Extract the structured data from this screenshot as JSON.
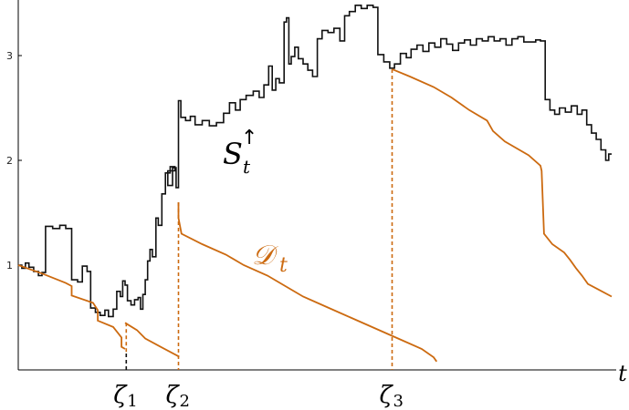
{
  "chart_data": {
    "type": "line",
    "title": "",
    "xlabel": "t",
    "ylabel": "",
    "ylim": [
      0,
      3.5
    ],
    "xlim": [
      0,
      1
    ],
    "grid": false,
    "yticks": [
      "1",
      "2",
      "3"
    ],
    "colors": {
      "S": "#111111",
      "D": "#cc6a10",
      "dashes_D": "#cc6a10",
      "dash_first": "#111111"
    },
    "series": [
      {
        "name": "S_t^↑",
        "label_main": "S",
        "label_sub": "t",
        "label_sup": "↑",
        "points": [
          [
            0.0,
            1.0
          ],
          [
            0.006,
            1.0
          ],
          [
            0.006,
            0.97
          ],
          [
            0.012,
            0.97
          ],
          [
            0.012,
            1.02
          ],
          [
            0.018,
            1.02
          ],
          [
            0.018,
            0.98
          ],
          [
            0.026,
            0.98
          ],
          [
            0.026,
            0.94
          ],
          [
            0.034,
            0.94
          ],
          [
            0.034,
            0.9
          ],
          [
            0.04,
            0.9
          ],
          [
            0.04,
            0.93
          ],
          [
            0.046,
            0.93
          ],
          [
            0.046,
            1.37
          ],
          [
            0.058,
            1.37
          ],
          [
            0.058,
            1.35
          ],
          [
            0.07,
            1.35
          ],
          [
            0.07,
            1.38
          ],
          [
            0.08,
            1.38
          ],
          [
            0.08,
            1.35
          ],
          [
            0.09,
            1.35
          ],
          [
            0.09,
            0.86
          ],
          [
            0.1,
            0.86
          ],
          [
            0.1,
            0.84
          ],
          [
            0.108,
            0.84
          ],
          [
            0.108,
            0.99
          ],
          [
            0.116,
            0.99
          ],
          [
            0.116,
            0.94
          ],
          [
            0.122,
            0.94
          ],
          [
            0.122,
            0.59
          ],
          [
            0.13,
            0.59
          ],
          [
            0.13,
            0.55
          ],
          [
            0.138,
            0.55
          ],
          [
            0.138,
            0.52
          ],
          [
            0.146,
            0.52
          ],
          [
            0.146,
            0.57
          ],
          [
            0.152,
            0.57
          ],
          [
            0.152,
            0.51
          ],
          [
            0.16,
            0.51
          ],
          [
            0.16,
            0.58
          ],
          [
            0.166,
            0.58
          ],
          [
            0.166,
            0.75
          ],
          [
            0.172,
            0.75
          ],
          [
            0.172,
            0.7
          ],
          [
            0.176,
            0.7
          ],
          [
            0.176,
            0.85
          ],
          [
            0.18,
            0.85
          ],
          [
            0.18,
            0.81
          ],
          [
            0.184,
            0.81
          ],
          [
            0.184,
            0.66
          ],
          [
            0.19,
            0.66
          ],
          [
            0.19,
            0.62
          ],
          [
            0.196,
            0.62
          ],
          [
            0.196,
            0.67
          ],
          [
            0.202,
            0.67
          ],
          [
            0.202,
            0.69
          ],
          [
            0.206,
            0.69
          ],
          [
            0.206,
            0.58
          ],
          [
            0.21,
            0.58
          ],
          [
            0.21,
            0.72
          ],
          [
            0.214,
            0.72
          ],
          [
            0.214,
            0.86
          ],
          [
            0.218,
            0.86
          ],
          [
            0.218,
            1.04
          ],
          [
            0.222,
            1.04
          ],
          [
            0.222,
            1.15
          ],
          [
            0.226,
            1.15
          ],
          [
            0.226,
            1.08
          ],
          [
            0.232,
            1.08
          ],
          [
            0.232,
            1.45
          ],
          [
            0.236,
            1.45
          ],
          [
            0.236,
            1.38
          ],
          [
            0.242,
            1.38
          ],
          [
            0.242,
            1.68
          ],
          [
            0.248,
            1.68
          ],
          [
            0.248,
            1.88
          ],
          [
            0.256,
            1.88
          ],
          [
            0.256,
            1.94
          ],
          [
            0.264,
            1.94
          ],
          [
            0.264,
            1.9
          ],
          [
            0.252,
            1.9
          ],
          [
            0.252,
            1.76
          ],
          [
            0.26,
            1.76
          ],
          [
            0.26,
            1.93
          ],
          [
            0.266,
            1.93
          ],
          [
            0.266,
            1.74
          ],
          [
            0.27,
            1.74
          ],
          [
            0.27,
            2.57
          ],
          [
            0.274,
            2.57
          ],
          [
            0.274,
            2.41
          ],
          [
            0.282,
            2.41
          ],
          [
            0.282,
            2.38
          ],
          [
            0.29,
            2.38
          ],
          [
            0.29,
            2.42
          ],
          [
            0.298,
            2.42
          ],
          [
            0.298,
            2.34
          ],
          [
            0.31,
            2.34
          ],
          [
            0.31,
            2.38
          ],
          [
            0.322,
            2.38
          ],
          [
            0.322,
            2.33
          ],
          [
            0.334,
            2.33
          ],
          [
            0.334,
            2.36
          ],
          [
            0.346,
            2.36
          ],
          [
            0.346,
            2.45
          ],
          [
            0.356,
            2.45
          ],
          [
            0.356,
            2.55
          ],
          [
            0.366,
            2.55
          ],
          [
            0.366,
            2.48
          ],
          [
            0.374,
            2.48
          ],
          [
            0.374,
            2.58
          ],
          [
            0.384,
            2.58
          ],
          [
            0.384,
            2.62
          ],
          [
            0.396,
            2.62
          ],
          [
            0.396,
            2.66
          ],
          [
            0.406,
            2.66
          ],
          [
            0.406,
            2.6
          ],
          [
            0.414,
            2.6
          ],
          [
            0.414,
            2.72
          ],
          [
            0.422,
            2.72
          ],
          [
            0.422,
            2.9
          ],
          [
            0.428,
            2.9
          ],
          [
            0.428,
            2.67
          ],
          [
            0.434,
            2.67
          ],
          [
            0.434,
            2.78
          ],
          [
            0.44,
            2.78
          ],
          [
            0.44,
            2.74
          ],
          [
            0.448,
            2.74
          ],
          [
            0.448,
            3.32
          ],
          [
            0.452,
            3.32
          ],
          [
            0.452,
            3.36
          ],
          [
            0.456,
            3.36
          ],
          [
            0.456,
            2.92
          ],
          [
            0.46,
            2.92
          ],
          [
            0.46,
            2.99
          ],
          [
            0.466,
            2.99
          ],
          [
            0.466,
            3.08
          ],
          [
            0.472,
            3.08
          ],
          [
            0.472,
            2.97
          ],
          [
            0.48,
            2.97
          ],
          [
            0.48,
            2.92
          ],
          [
            0.488,
            2.92
          ],
          [
            0.488,
            2.86
          ],
          [
            0.496,
            2.86
          ],
          [
            0.496,
            2.8
          ],
          [
            0.504,
            2.8
          ],
          [
            0.504,
            3.16
          ],
          [
            0.512,
            3.16
          ],
          [
            0.512,
            3.24
          ],
          [
            0.522,
            3.24
          ],
          [
            0.522,
            3.22
          ],
          [
            0.532,
            3.22
          ],
          [
            0.532,
            3.26
          ],
          [
            0.542,
            3.26
          ],
          [
            0.542,
            3.14
          ],
          [
            0.55,
            3.14
          ],
          [
            0.55,
            3.38
          ],
          [
            0.558,
            3.38
          ],
          [
            0.558,
            3.42
          ],
          [
            0.568,
            3.42
          ],
          [
            0.568,
            3.48
          ],
          [
            0.578,
            3.48
          ],
          [
            0.578,
            3.45
          ],
          [
            0.588,
            3.45
          ],
          [
            0.588,
            3.48
          ],
          [
            0.598,
            3.48
          ],
          [
            0.598,
            3.46
          ],
          [
            0.606,
            3.46
          ],
          [
            0.606,
            3.01
          ],
          [
            0.616,
            3.01
          ],
          [
            0.616,
            2.94
          ],
          [
            0.626,
            2.94
          ],
          [
            0.626,
            2.88
          ],
          [
            0.634,
            2.88
          ],
          [
            0.634,
            2.92
          ],
          [
            0.644,
            2.92
          ],
          [
            0.644,
            3.02
          ],
          [
            0.654,
            3.02
          ],
          [
            0.654,
            2.98
          ],
          [
            0.662,
            2.98
          ],
          [
            0.662,
            3.06
          ],
          [
            0.672,
            3.06
          ],
          [
            0.672,
            3.1
          ],
          [
            0.682,
            3.1
          ],
          [
            0.682,
            3.04
          ],
          [
            0.692,
            3.04
          ],
          [
            0.692,
            3.12
          ],
          [
            0.702,
            3.12
          ],
          [
            0.702,
            3.08
          ],
          [
            0.712,
            3.08
          ],
          [
            0.712,
            3.16
          ],
          [
            0.722,
            3.16
          ],
          [
            0.722,
            3.11
          ],
          [
            0.732,
            3.11
          ],
          [
            0.732,
            3.05
          ],
          [
            0.742,
            3.05
          ],
          [
            0.742,
            3.12
          ],
          [
            0.752,
            3.12
          ],
          [
            0.752,
            3.15
          ],
          [
            0.762,
            3.15
          ],
          [
            0.762,
            3.1
          ],
          [
            0.772,
            3.1
          ],
          [
            0.772,
            3.16
          ],
          [
            0.782,
            3.16
          ],
          [
            0.782,
            3.14
          ],
          [
            0.792,
            3.14
          ],
          [
            0.792,
            3.18
          ],
          [
            0.802,
            3.18
          ],
          [
            0.802,
            3.14
          ],
          [
            0.812,
            3.14
          ],
          [
            0.812,
            3.16
          ],
          [
            0.822,
            3.16
          ],
          [
            0.822,
            3.1
          ],
          [
            0.832,
            3.1
          ],
          [
            0.832,
            3.16
          ],
          [
            0.842,
            3.16
          ],
          [
            0.842,
            3.18
          ],
          [
            0.852,
            3.18
          ],
          [
            0.852,
            3.13
          ],
          [
            0.872,
            3.13
          ],
          [
            0.872,
            3.15
          ],
          [
            0.88,
            3.15
          ],
          [
            0.88,
            3.14
          ],
          [
            0.888,
            3.14
          ],
          [
            0.888,
            2.58
          ],
          [
            0.896,
            2.58
          ],
          [
            0.896,
            2.48
          ],
          [
            0.904,
            2.48
          ],
          [
            0.904,
            2.44
          ],
          [
            0.912,
            2.44
          ],
          [
            0.912,
            2.5
          ],
          [
            0.922,
            2.5
          ],
          [
            0.922,
            2.46
          ],
          [
            0.932,
            2.46
          ],
          [
            0.932,
            2.52
          ],
          [
            0.942,
            2.52
          ],
          [
            0.942,
            2.44
          ],
          [
            0.95,
            2.44
          ],
          [
            0.95,
            2.48
          ],
          [
            0.958,
            2.48
          ],
          [
            0.958,
            2.34
          ],
          [
            0.966,
            2.34
          ],
          [
            0.966,
            2.26
          ],
          [
            0.974,
            2.26
          ],
          [
            0.974,
            2.2
          ],
          [
            0.982,
            2.2
          ],
          [
            0.982,
            2.1
          ],
          [
            0.99,
            2.1
          ],
          [
            0.99,
            2.0
          ],
          [
            0.995,
            2.0
          ],
          [
            0.995,
            2.06
          ],
          [
            1.0,
            2.06
          ]
        ]
      },
      {
        "name": "𝒟_t",
        "label_main": "𝒟",
        "label_sub": "t",
        "points": [
          [
            0.0,
            1.0
          ],
          [
            0.04,
            0.92
          ],
          [
            0.08,
            0.83
          ],
          [
            0.09,
            0.8
          ],
          [
            0.09,
            0.71
          ],
          [
            0.126,
            0.64
          ],
          [
            0.134,
            0.57
          ],
          [
            0.134,
            0.47
          ],
          [
            0.16,
            0.41
          ],
          [
            0.174,
            0.31
          ],
          [
            0.174,
            0.22
          ],
          [
            0.18,
            0.2
          ],
          null,
          [
            0.18,
            0.45
          ],
          [
            0.2,
            0.38
          ],
          [
            0.214,
            0.3
          ],
          [
            0.24,
            0.22
          ],
          [
            0.27,
            0.13
          ],
          [
            0.27,
            0.12
          ],
          null,
          [
            0.27,
            1.6
          ],
          [
            0.27,
            1.45
          ],
          [
            0.275,
            1.3
          ],
          [
            0.31,
            1.2
          ],
          [
            0.35,
            1.1
          ],
          [
            0.38,
            1.0
          ],
          [
            0.42,
            0.9
          ],
          [
            0.45,
            0.8
          ],
          [
            0.48,
            0.7
          ],
          [
            0.52,
            0.6
          ],
          [
            0.56,
            0.5
          ],
          [
            0.6,
            0.4
          ],
          [
            0.64,
            0.3
          ],
          [
            0.68,
            0.2
          ],
          [
            0.7,
            0.12
          ],
          [
            0.705,
            0.08
          ],
          null,
          [
            0.63,
            2.87
          ],
          [
            0.66,
            2.8
          ],
          [
            0.7,
            2.7
          ],
          [
            0.73,
            2.6
          ],
          [
            0.76,
            2.48
          ],
          [
            0.79,
            2.38
          ],
          [
            0.8,
            2.28
          ],
          [
            0.82,
            2.18
          ],
          [
            0.86,
            2.05
          ],
          [
            0.88,
            1.95
          ],
          [
            0.882,
            1.9
          ],
          [
            0.886,
            1.3
          ],
          [
            0.9,
            1.2
          ],
          [
            0.92,
            1.12
          ],
          [
            0.93,
            1.05
          ],
          [
            0.94,
            0.97
          ],
          [
            0.95,
            0.9
          ],
          [
            0.96,
            0.82
          ],
          [
            0.98,
            0.76
          ],
          [
            1.0,
            0.7
          ]
        ]
      }
    ],
    "dashed_drops": [
      {
        "x": 0.182,
        "y_top": 0.45,
        "label": "ζ",
        "sub": "1"
      },
      {
        "x": 0.27,
        "y_top": 1.6,
        "label": "ζ",
        "sub": "2"
      },
      {
        "x": 0.63,
        "y_top": 2.87,
        "label": "ζ",
        "sub": "3"
      }
    ]
  }
}
